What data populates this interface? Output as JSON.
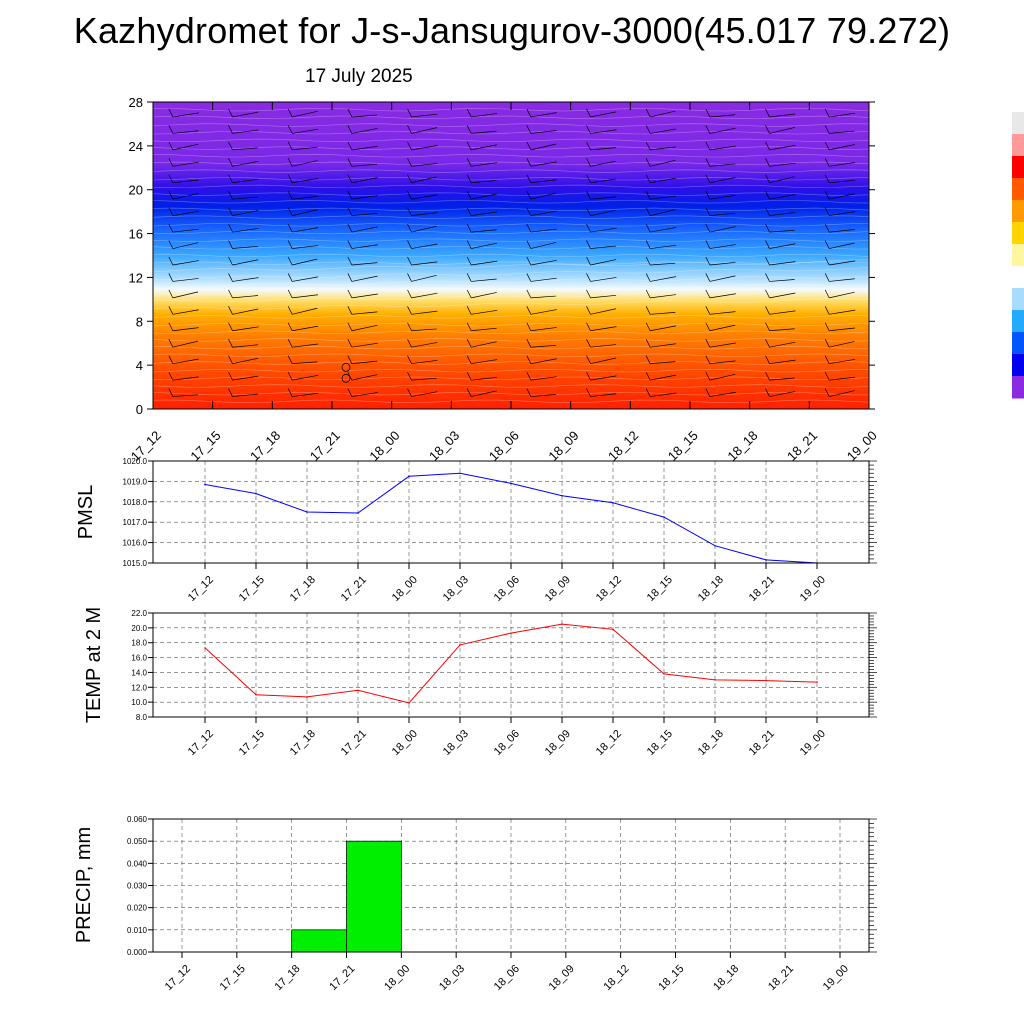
{
  "header": {
    "title": "Kazhydromet for J-s-Jansugurov-3000(45.017 79.272)",
    "date": "17 July 2025"
  },
  "chart_data": [
    {
      "type": "heatmap",
      "name": "vertical-cross-section",
      "categories": [
        "17_12",
        "17_15",
        "17_18",
        "17_21",
        "18_00",
        "18_03",
        "18_06",
        "18_09",
        "18_12",
        "18_15",
        "18_18",
        "18_21",
        "19_00"
      ],
      "yticks": [
        0,
        4,
        8,
        12,
        16,
        20,
        24,
        28
      ],
      "ylim": [
        0,
        28
      ],
      "colorbar_colors": [
        "#e8e8e8",
        "#ff9a9a",
        "#ff0000",
        "#ff5a00",
        "#ff9a00",
        "#ffd400",
        "#fff7a0",
        "#ffffff",
        "#a8dcff",
        "#22aaff",
        "#0055ff",
        "#0000ee",
        "#8a2be2"
      ],
      "contour_colors": [
        "#ff2a00",
        "#ff5c00",
        "#ff9000",
        "#ffc000",
        "#ffee90",
        "#cfeeff",
        "#4fb4ff",
        "#1e5fff",
        "#0000e0",
        "#5018e8",
        "#8a2be2"
      ]
    },
    {
      "type": "line",
      "name": "pmsl",
      "ylabel": "PMSL",
      "categories": [
        "17_12",
        "17_15",
        "17_18",
        "17_21",
        "18_00",
        "18_03",
        "18_06",
        "18_09",
        "18_12",
        "18_15",
        "18_18",
        "18_21",
        "19_00"
      ],
      "values": [
        1018.85,
        1018.4,
        1017.5,
        1017.45,
        1019.25,
        1019.4,
        1018.9,
        1018.3,
        1017.95,
        1017.25,
        1015.85,
        1015.15,
        1015.0
      ],
      "ylim": [
        1015.0,
        1020.0
      ],
      "yticks": [
        "1015.0",
        "1016.0",
        "1017.0",
        "1018.0",
        "1019.0",
        "1020.0"
      ],
      "color": "#0000ff"
    },
    {
      "type": "line",
      "name": "temp-2m",
      "ylabel": "TEMP at 2 M",
      "categories": [
        "17_12",
        "17_15",
        "17_18",
        "17_21",
        "18_00",
        "18_03",
        "18_06",
        "18_09",
        "18_12",
        "18_15",
        "18_18",
        "18_21",
        "19_00"
      ],
      "values": [
        17.3,
        11.0,
        10.7,
        11.6,
        9.9,
        17.7,
        19.3,
        20.5,
        19.8,
        13.8,
        13.0,
        12.9,
        12.7
      ],
      "ylim": [
        8.0,
        22.0
      ],
      "yticks": [
        "8.0",
        "10.0",
        "12.0",
        "14.0",
        "16.0",
        "18.0",
        "20.0",
        "22.0"
      ],
      "color": "#ff0000"
    },
    {
      "type": "bar",
      "name": "precip",
      "ylabel": "PRECIP, mm",
      "categories": [
        "17_12",
        "17_15",
        "17_18",
        "17_21",
        "18_00",
        "18_03",
        "18_06",
        "18_09",
        "18_12",
        "18_15",
        "18_18",
        "18_21",
        "19_00"
      ],
      "values": [
        0,
        0,
        0,
        0.01,
        0.05,
        0,
        0,
        0,
        0,
        0,
        0,
        0,
        0
      ],
      "ylim": [
        0,
        0.06
      ],
      "yticks": [
        "0.000",
        "0.010",
        "0.020",
        "0.030",
        "0.040",
        "0.050",
        "0.060"
      ],
      "color": "#00ee00"
    }
  ]
}
